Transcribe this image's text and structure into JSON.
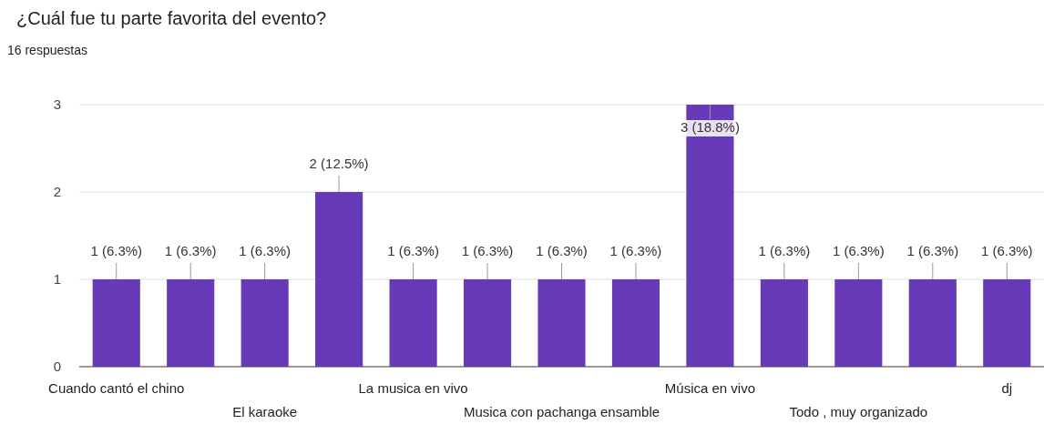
{
  "chart_data": {
    "type": "bar",
    "title": "¿Cuál fue tu parte favorita del evento?",
    "subtitle": "16 respuestas",
    "categories": [
      "Cuando cantó el chino",
      null,
      "El karaoke",
      null,
      "La musica en vivo",
      null,
      "Musica con pachanga ensamble",
      null,
      "Música en vivo",
      null,
      "Todo , muy organizado",
      null,
      "dj"
    ],
    "values": [
      1,
      1,
      1,
      2,
      1,
      1,
      1,
      1,
      3,
      1,
      1,
      1,
      1
    ],
    "value_labels": [
      "1 (6.3%)",
      "1 (6.3%)",
      "1 (6.3%)",
      "2 (12.5%)",
      "1 (6.3%)",
      "1 (6.3%)",
      "1 (6.3%)",
      "1 (6.3%)",
      "3 (18.8%)",
      "1 (6.3%)",
      "1 (6.3%)",
      "1 (6.3%)",
      "1 (6.3%)"
    ],
    "color": "#673ab7",
    "ylim": [
      0,
      3
    ],
    "yticks": [
      0,
      1,
      2,
      3
    ],
    "grid": "y"
  }
}
